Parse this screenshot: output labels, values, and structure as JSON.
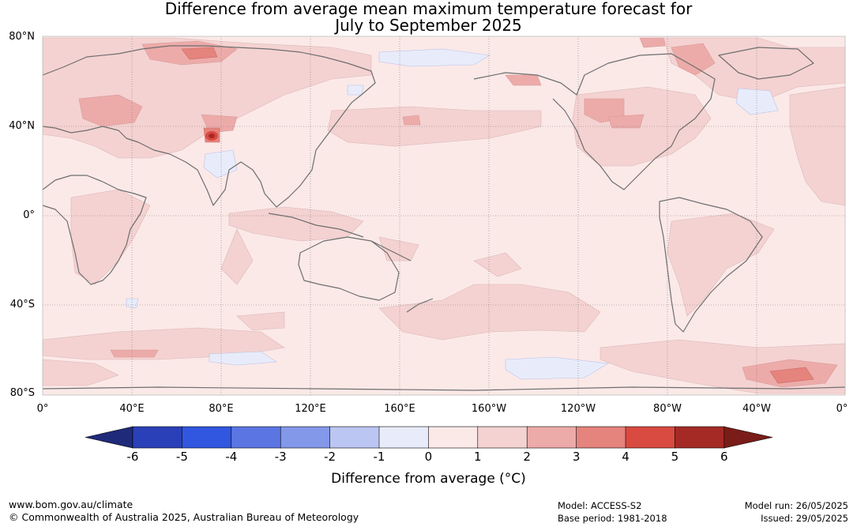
{
  "title": {
    "line1": "Difference from average mean maximum temperature forecast for",
    "line2": "July to September 2025"
  },
  "map": {
    "latitude_labels": [
      "80°N",
      "40°N",
      "0°",
      "40°S",
      "80°S"
    ],
    "longitude_labels": [
      "0°",
      "40°E",
      "80°E",
      "120°E",
      "160°E",
      "160°W",
      "120°W",
      "80°W",
      "40°W",
      "0°"
    ],
    "anomaly_field_description_colors": {
      "background_0_to_1": "#fbe9e8",
      "band_1_to_2": "#f4d2d1",
      "band_2_to_3": "#ecaba9",
      "band_3_to_4": "#e5837d",
      "hot_spot": "#a52a25",
      "minus_1_to_0": "#e8ecfa",
      "coastline": "#6e6e6e"
    }
  },
  "colorbar": {
    "ticks": [
      "-6",
      "-5",
      "-4",
      "-3",
      "-2",
      "-1",
      "0",
      "1",
      "2",
      "3",
      "4",
      "5",
      "6"
    ],
    "colors": [
      "#1f2a7a",
      "#2a40b8",
      "#3157e0",
      "#5b76e3",
      "#8498e9",
      "#bcc6f2",
      "#e8ecfa",
      "#fbe9e8",
      "#f4d2d1",
      "#ecaba9",
      "#e5837d",
      "#d94a40",
      "#a52a25",
      "#7a1c18"
    ],
    "label": "Difference from average (°C)"
  },
  "footer": {
    "url": "www.bom.gov.au/climate",
    "copyright": "© Commonwealth of Australia 2025, Australian Bureau of Meteorology",
    "model": "Model: ACCESS-S2",
    "base_period": "Base period: 1981-2018",
    "model_run": "Model run: 26/05/2025",
    "issued": "Issued: 29/05/2025"
  }
}
